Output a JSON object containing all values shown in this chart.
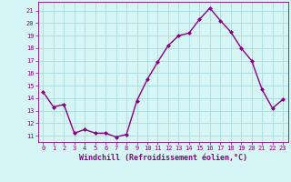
{
  "x": [
    0,
    1,
    2,
    3,
    4,
    5,
    6,
    7,
    8,
    9,
    10,
    11,
    12,
    13,
    14,
    15,
    16,
    17,
    18,
    19,
    20,
    21,
    22,
    23
  ],
  "y": [
    14.5,
    13.3,
    13.5,
    11.2,
    11.5,
    11.2,
    11.2,
    10.9,
    11.1,
    13.8,
    15.5,
    16.9,
    18.2,
    19.0,
    19.2,
    20.3,
    21.2,
    20.2,
    19.3,
    18.0,
    17.0,
    14.7,
    13.2,
    13.9
  ],
  "line_color": "#8B008B",
  "marker": "D",
  "marker_size": 2,
  "background_color": "#d6f5f5",
  "grid_color": "#b0dede",
  "xlabel": "Windchill (Refroidissement éolien,°C)",
  "xlabel_color": "#8B008B",
  "tick_color": "#8B008B",
  "ylim": [
    10.5,
    21.7
  ],
  "xlim": [
    -0.5,
    23.5
  ],
  "yticks": [
    11,
    12,
    13,
    14,
    15,
    16,
    17,
    18,
    19,
    20,
    21
  ],
  "xticks": [
    0,
    1,
    2,
    3,
    4,
    5,
    6,
    7,
    8,
    9,
    10,
    11,
    12,
    13,
    14,
    15,
    16,
    17,
    18,
    19,
    20,
    21,
    22,
    23
  ]
}
